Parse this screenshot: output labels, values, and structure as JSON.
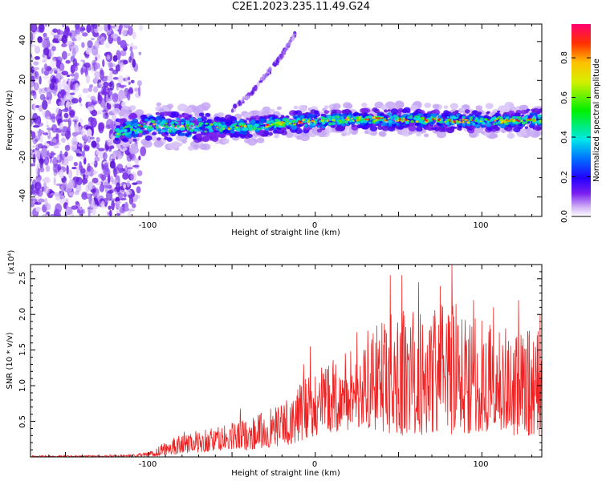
{
  "title": "C2E1.2023.235.11.49.G24",
  "colors": {
    "trace": "#ee2222",
    "axis": "#000000"
  },
  "chart_data": [
    {
      "type": "heatmap",
      "xlabel": "Height of straight line (km)",
      "ylabel": "Frequency (Hz)",
      "xlim": [
        -171,
        136
      ],
      "ylim": [
        -50,
        49
      ],
      "xticks": [
        "-100",
        "0",
        "100"
      ],
      "yticks": [
        "40",
        "20",
        "0",
        "-20",
        "-40"
      ],
      "colorbar": {
        "label": "Normalized spectral amplitude",
        "range": [
          0.0,
          0.97
        ],
        "ticks": [
          "0.0",
          "0.2",
          "0.4",
          "0.6",
          "0.8"
        ],
        "colormap": "rainbow"
      },
      "features": {
        "noise_region_x": [
          -171,
          -115
        ],
        "main_band": [
          [
            -120,
            -7
          ],
          [
            -100,
            -3
          ],
          [
            -80,
            -4
          ],
          [
            -60,
            -4
          ],
          [
            -40,
            -4
          ],
          [
            -20,
            -2
          ],
          [
            0,
            -1
          ],
          [
            20,
            0
          ],
          [
            50,
            0
          ],
          [
            100,
            -1
          ],
          [
            136,
            0
          ]
        ],
        "upper_branch": [
          [
            -50,
            5
          ],
          [
            -40,
            12
          ],
          [
            -30,
            22
          ],
          [
            -20,
            33
          ],
          [
            -12,
            44
          ]
        ]
      }
    },
    {
      "type": "line",
      "xlabel": "Height of straight line (km)",
      "ylabel": "SNR (10 * v/v)",
      "scale_label": "(x10⁴)",
      "xlim": [
        -171,
        136
      ],
      "ylim": [
        0,
        2.7
      ],
      "xticks": [
        "-100",
        "0",
        "100"
      ],
      "yticks": [
        "0.5",
        "1.0",
        "1.5",
        "2.0",
        "2.5"
      ],
      "series": [
        {
          "envelope_x": [
            -171,
            -110,
            -100,
            -90,
            -80,
            -60,
            -40,
            -20,
            -10,
            0,
            10,
            20,
            30,
            40,
            50,
            60,
            80,
            100,
            120,
            136
          ],
          "envelope_y": [
            0.02,
            0.03,
            0.08,
            0.22,
            0.35,
            0.42,
            0.55,
            0.75,
            1.0,
            1.25,
            1.35,
            1.55,
            1.75,
            1.9,
            2.15,
            2.1,
            2.2,
            2.0,
            1.85,
            1.75
          ],
          "floor_y": [
            0.0,
            0.0,
            0.0,
            0.02,
            0.05,
            0.08,
            0.1,
            0.15,
            0.2,
            0.3,
            0.35,
            0.35,
            0.4,
            0.35,
            0.3,
            0.3,
            0.3,
            0.35,
            0.3,
            0.3
          ],
          "peaks": [
            [
              -45,
              0.68
            ],
            [
              -7,
              1.3
            ],
            [
              -3,
              1.55
            ],
            [
              25,
              1.75
            ],
            [
              45,
              2.55
            ],
            [
              52,
              2.55
            ],
            [
              62,
              2.45
            ],
            [
              75,
              2.4
            ],
            [
              82,
              2.7
            ],
            [
              95,
              2.2
            ],
            [
              107,
              2.1
            ],
            [
              122,
              2.2
            ],
            [
              135,
              2.0
            ]
          ]
        }
      ]
    }
  ]
}
